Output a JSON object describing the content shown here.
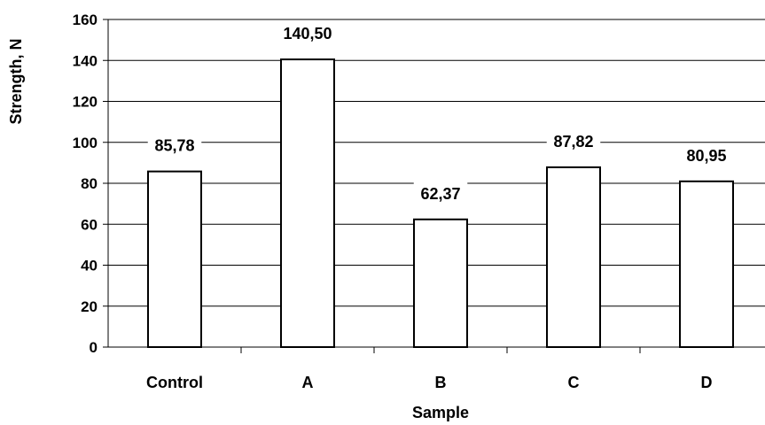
{
  "chart_data": {
    "type": "bar",
    "categories": [
      "Control",
      "A",
      "B",
      "C",
      "D"
    ],
    "values": [
      85.78,
      140.5,
      62.37,
      87.82,
      80.95
    ],
    "data_labels": [
      "85,78",
      "140,50",
      "62,37",
      "87,82",
      "80,95"
    ],
    "title": "",
    "xlabel": "Sample",
    "ylabel": "Strength, N",
    "ylim": [
      0,
      160
    ],
    "yticks": [
      0,
      20,
      40,
      60,
      80,
      100,
      120,
      140,
      160
    ],
    "grid": true,
    "legend": "none",
    "colors": {
      "bar_fill": "#ffffff",
      "bar_stroke": "#000000",
      "grid": "#000000",
      "axis": "#000000"
    }
  }
}
